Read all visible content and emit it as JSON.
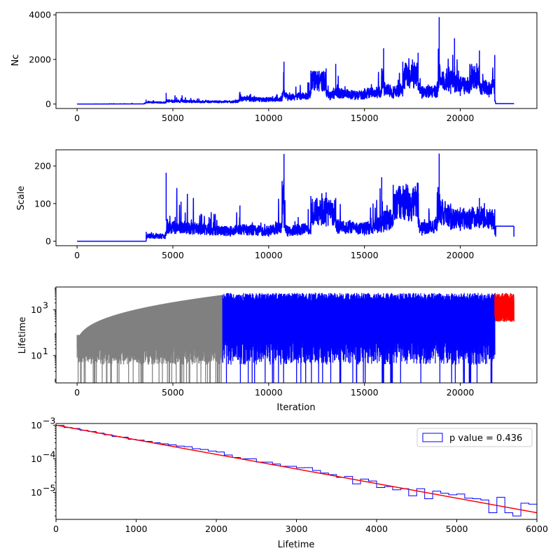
{
  "colors": {
    "blue": "#0000ff",
    "gray": "#808080",
    "red": "#ff0000"
  },
  "chart_data": [
    {
      "type": "line",
      "ylabel": "Nc",
      "xlabel": "",
      "xlim": [
        -1100,
        24000
      ],
      "ylim": [
        -200,
        4100
      ],
      "xticks": [
        0,
        5000,
        10000,
        15000,
        20000
      ],
      "xtick_labels": [
        "0",
        "5000",
        "10000",
        "15000",
        "20000"
      ],
      "yticks": [
        0,
        2000,
        4000
      ],
      "ytick_labels": [
        "0",
        "2000",
        "4000"
      ],
      "series": [
        {
          "color": "#0000ff",
          "x": [
            0,
            3500,
            3600,
            4600,
            4650,
            7000,
            8400,
            8500,
            10000,
            10700,
            10800,
            11000,
            12200,
            13000,
            13200,
            13500,
            14500,
            15000,
            15900,
            16000,
            16500,
            17000,
            17800,
            18000,
            18800,
            18900,
            19500,
            19700,
            20000,
            20500,
            21000,
            21500,
            21800,
            21850,
            22800
          ],
          "y": [
            0,
            50,
            200,
            100,
            500,
            150,
            200,
            550,
            300,
            500,
            1900,
            450,
            1500,
            1600,
            550,
            1800,
            600,
            700,
            1600,
            2500,
            800,
            1900,
            2300,
            800,
            1000,
            3900,
            1500,
            2950,
            1200,
            1800,
            2400,
            1000,
            2200,
            20,
            20
          ]
        }
      ]
    },
    {
      "type": "line",
      "ylabel": "Scale",
      "xlabel": "",
      "xlim": [
        -1100,
        24000
      ],
      "ylim": [
        -12,
        243
      ],
      "xticks": [
        0,
        5000,
        10000,
        15000,
        20000
      ],
      "xtick_labels": [
        "0",
        "5000",
        "10000",
        "15000",
        "20000"
      ],
      "yticks": [
        0,
        100,
        200
      ],
      "ytick_labels": [
        "0",
        "100",
        "200"
      ],
      "series": [
        {
          "color": "#0000ff",
          "x": [
            0,
            3600,
            3610,
            4600,
            4650,
            8000,
            8500,
            10000,
            10700,
            10800,
            11000,
            12200,
            13000,
            13500,
            15000,
            15900,
            16000,
            16500,
            17800,
            18000,
            18800,
            18900,
            19500,
            20000,
            21000,
            21800,
            21850,
            22800
          ],
          "y": [
            0,
            0,
            25,
            20,
            182,
            40,
            95,
            40,
            160,
            232,
            40,
            120,
            130,
            115,
            50,
            170,
            80,
            150,
            155,
            50,
            130,
            233,
            100,
            90,
            115,
            85,
            40,
            40
          ]
        }
      ]
    },
    {
      "type": "line",
      "ylabel": "Lifetime",
      "xlabel": "Iteration",
      "xlim": [
        -1100,
        24000
      ],
      "ylim_log10": [
        -0.2,
        4.0
      ],
      "yscale": "log",
      "xticks": [
        0,
        5000,
        10000,
        15000,
        20000
      ],
      "xtick_labels": [
        "0",
        "5000",
        "10000",
        "15000",
        "20000"
      ],
      "yticks_exp": [
        1,
        3
      ],
      "series": [
        {
          "color": "#808080",
          "x_range": [
            0,
            7600
          ],
          "value_range": [
            1,
            4500
          ]
        },
        {
          "color": "#0000ff",
          "x_range": [
            7600,
            21800
          ],
          "value_range": [
            1,
            5500
          ]
        },
        {
          "color": "#ff0000",
          "x_range": [
            21800,
            22800
          ],
          "value_range": [
            300,
            5500
          ]
        }
      ]
    },
    {
      "type": "histogram",
      "ylabel": "",
      "xlabel": "Lifetime",
      "xlim": [
        0,
        6000
      ],
      "ylim_log10": [
        -5.8,
        -2.95
      ],
      "yscale": "log",
      "xticks": [
        0,
        1000,
        2000,
        3000,
        4000,
        5000,
        6000
      ],
      "xtick_labels": [
        "0",
        "1000",
        "2000",
        "3000",
        "4000",
        "5000",
        "6000"
      ],
      "yticks_exp": [
        -5,
        -4,
        -3
      ],
      "legend": {
        "label": "p value = 0.436",
        "placement": "upper right"
      },
      "fit_line": {
        "color": "#ff0000",
        "x": [
          0,
          6000
        ],
        "y": [
          0.001,
          2.5e-06
        ]
      },
      "hist": {
        "color": "#0000ff",
        "bin_width": 100,
        "x_start": 0,
        "values": [
          0.00098,
          0.00085,
          0.0008,
          0.0007,
          0.00065,
          0.00058,
          0.00052,
          0.00046,
          0.00044,
          0.00038,
          0.00036,
          0.00033,
          0.0003,
          0.00028,
          0.00026,
          0.00024,
          0.00023,
          0.0002,
          0.00019,
          0.00017,
          0.00016,
          0.00013,
          0.00011,
          0.0001,
          0.0001,
          8e-05,
          8e-05,
          7e-05,
          6e-05,
          6e-05,
          5.4e-05,
          5.5e-05,
          4.5e-05,
          3.8e-05,
          3.4e-05,
          2.8e-05,
          3e-05,
          1.8e-05,
          2.5e-05,
          2.2e-05,
          1.4e-05,
          1.5e-05,
          1.2e-05,
          1.3e-05,
          8e-06,
          1.3e-05,
          6.5e-06,
          1.1e-05,
          9.5e-06,
          8.5e-06,
          9e-06,
          6.8e-06,
          6.5e-06,
          6e-06,
          2.5e-06,
          7.2e-06,
          2.5e-06,
          2e-06,
          4.8e-06,
          4.5e-06
        ]
      }
    }
  ]
}
